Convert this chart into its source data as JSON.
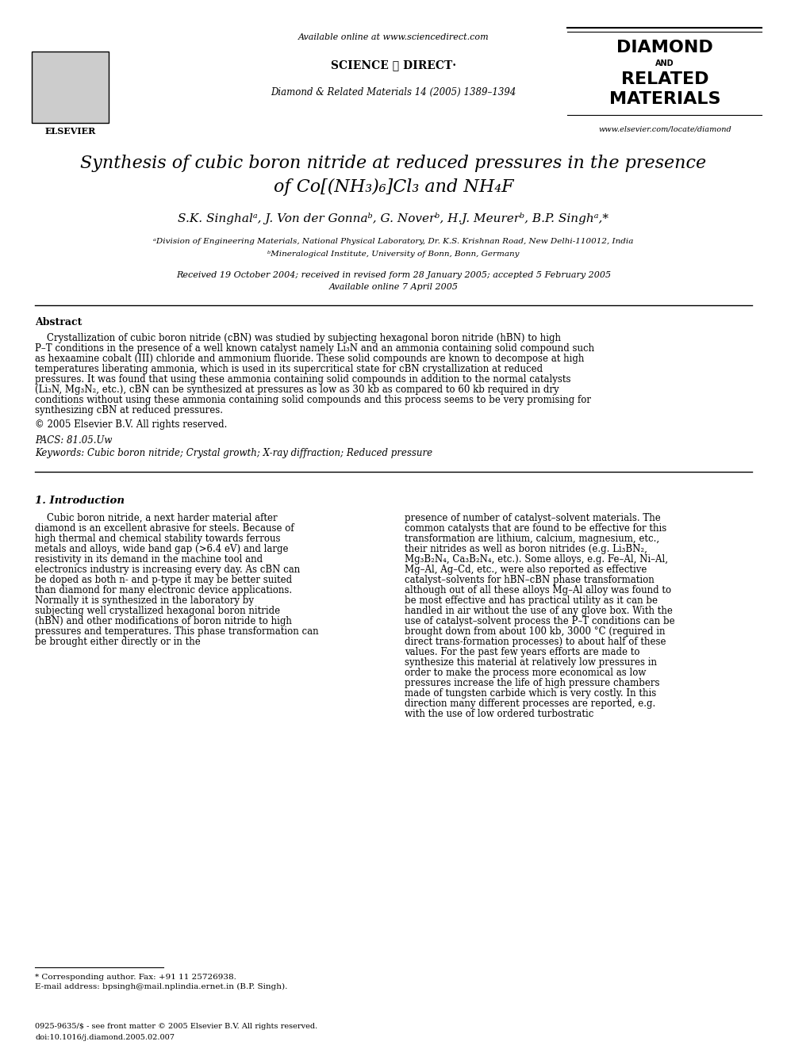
{
  "bg_color": "#ffffff",
  "header": {
    "available_online": "Available online at www.sciencedirect.com",
    "science_direct": "SCIENCE ⓐ DIRECT·",
    "journal_ref": "Diamond & Related Materials 14 (2005) 1389–1394",
    "journal_name_line1": "DIAMOND",
    "journal_name_and": "AND",
    "journal_name_line2": "RELATED",
    "journal_name_line3": "MATERIALS",
    "journal_url": "www.elsevier.com/locate/diamond",
    "elsevier_label": "ELSEVIER"
  },
  "title_line1": "Synthesis of cubic boron nitride at reduced pressures in the presence",
  "title_line2": "of Co[(NH₃)₆]Cl₃ and NH₄F",
  "authors": "S.K. Singhalᵃ, J. Von der Gonnaᵇ, G. Noverᵇ, H.J. Meurerᵇ, B.P. Singhᵃ,*",
  "affil1": "ᵃDivision of Engineering Materials, National Physical Laboratory, Dr. K.S. Krishnan Road, New Delhi-110012, India",
  "affil2": "ᵇMineralogical Institute, University of Bonn, Bonn, Germany",
  "received": "Received 19 October 2004; received in revised form 28 January 2005; accepted 5 February 2005",
  "available": "Available online 7 April 2005",
  "abstract_title": "Abstract",
  "abstract_text": "    Crystallization of cubic boron nitride (cBN) was studied by subjecting hexagonal boron nitride (hBN) to high P–T conditions in the presence of a well known catalyst namely Li₃N and an ammonia containing solid compound such as hexaamine cobalt (III) chloride and ammonium fluoride. These solid compounds are known to decompose at high temperatures liberating ammonia, which is used in its supercritical state for cBN crystallization at reduced pressures. It was found that using these ammonia containing solid compounds in addition to the normal catalysts (Li₃N, Mg₃N₂, etc.), cBN can be synthesized at pressures as low as 30 kb as compared to 60 kb required in dry conditions without using these ammonia containing solid compounds and this process seems to be very promising for synthesizing cBN at reduced pressures.",
  "copyright": "© 2005 Elsevier B.V. All rights reserved.",
  "pacs": "PACS: 81.05.Uw",
  "keywords": "Keywords: Cubic boron nitride; Crystal growth; X-ray diffraction; Reduced pressure",
  "section1_title": "1. Introduction",
  "intro_col1_para1": "    Cubic boron nitride, a next harder material after diamond is an excellent abrasive for steels. Because of high thermal and chemical stability towards ferrous metals and alloys, wide band gap (>6.4 eV) and large resistivity in its demand in the machine tool and electronics industry is increasing every day. As cBN can be doped as both n- and p-type it may be better suited than diamond for many electronic device applications. Normally it is synthesized in the laboratory by subjecting well crystallized hexagonal boron nitride (hBN) and other modifications of boron nitride to high pressures and temperatures. This phase transformation can be brought either directly or in the",
  "intro_col2_para1": "presence of number of catalyst–solvent materials. The common catalysts that are found to be effective for this transformation are lithium, calcium, magnesium, etc., their nitrides as well as boron nitrides (e.g. Li₃BN₂, Mg₃B₂N₄, Ca₃B₂N₄, etc.). Some alloys, e.g. Fe–Al, Ni–Al, Mg–Al, Ag–Cd, etc., were also reported as effective catalyst–solvents for hBN–cBN phase transformation although out of all these alloys Mg–Al alloy was found to be most effective and has practical utility as it can be handled in air without the use of any glove box. With the use of catalyst–solvent process the P–T conditions can be brought down from about 100 kb, 3000 °C (required in direct trans-formation processes) to about half of these values. For the past few years efforts are made to synthesize this material at relatively low pressures in order to make the process more economical as low pressures increase the life of high pressure chambers made of tungsten carbide which is very costly. In this direction many different processes are reported, e.g. with the use of low ordered turbostratic",
  "footnote_star": "* Corresponding author. Fax: +91 11 25726938.",
  "footnote_email": "E-mail address: bpsingh@mail.nplindia.ernet.in (B.P. Singh).",
  "footer_issn": "0925-9635/$ - see front matter © 2005 Elsevier B.V. All rights reserved.",
  "footer_doi": "doi:10.1016/j.diamond.2005.02.007"
}
